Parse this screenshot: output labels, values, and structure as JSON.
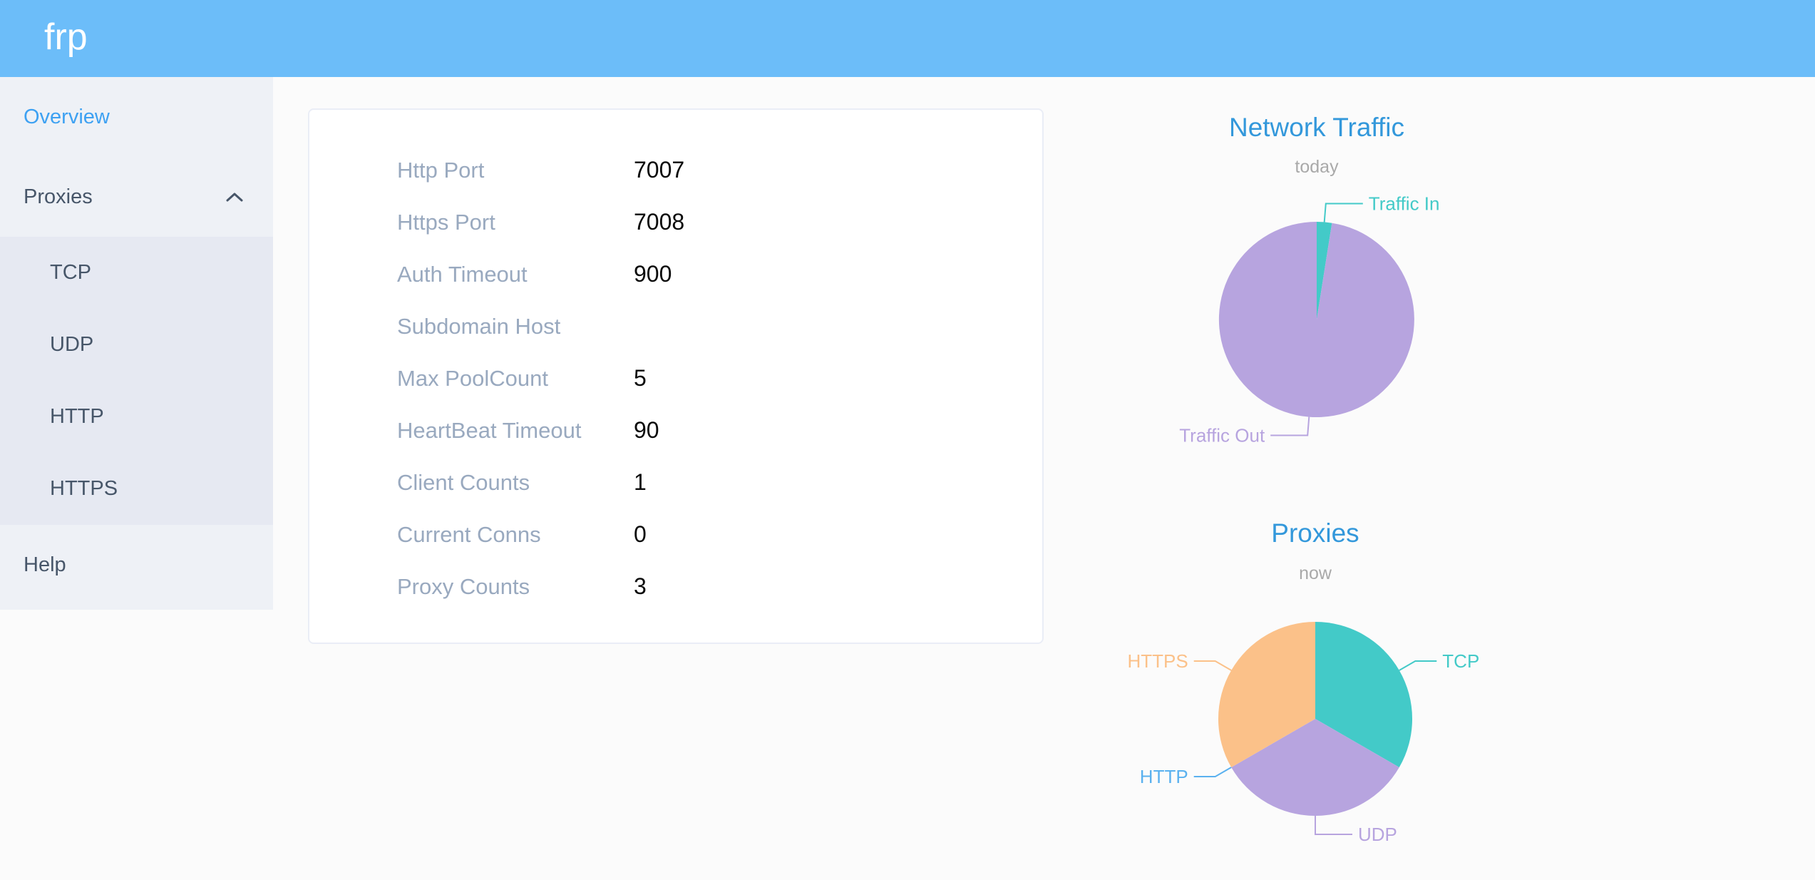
{
  "app": {
    "logo": "frp"
  },
  "sidebar": {
    "items": [
      {
        "label": "Overview",
        "active": true
      },
      {
        "label": "Proxies",
        "expanded": true,
        "icon": "chevron-up-icon",
        "children": [
          "TCP",
          "UDP",
          "HTTP",
          "HTTPS"
        ]
      },
      {
        "label": "Help"
      }
    ]
  },
  "overview": {
    "rows": [
      {
        "label": "Http Port",
        "value": "7007"
      },
      {
        "label": "Https Port",
        "value": "7008"
      },
      {
        "label": "Auth Timeout",
        "value": "900"
      },
      {
        "label": "Subdomain Host",
        "value": ""
      },
      {
        "label": "Max PoolCount",
        "value": "5"
      },
      {
        "label": "HeartBeat Timeout",
        "value": "90"
      },
      {
        "label": "Client Counts",
        "value": "1"
      },
      {
        "label": "Current Conns",
        "value": "0"
      },
      {
        "label": "Proxy Counts",
        "value": "3"
      }
    ]
  },
  "chart_data": [
    {
      "type": "pie",
      "title": "Network Traffic",
      "subtitle": "today",
      "legend_position": "none",
      "label_position": "outside",
      "values_unit": "percent share (estimated from slice angles; absolute byte values not displayed)",
      "slices": [
        {
          "label": "Traffic In",
          "value": 2.5,
          "color": "#43cac8"
        },
        {
          "label": "Traffic Out",
          "value": 97.5,
          "color": "#b7a4df"
        }
      ]
    },
    {
      "type": "pie",
      "title": "Proxies",
      "subtitle": "now",
      "legend_position": "none",
      "label_position": "outside",
      "values_unit": "proxy count",
      "slices": [
        {
          "label": "TCP",
          "value": 1,
          "color": "#43cac8"
        },
        {
          "label": "UDP",
          "value": 1,
          "color": "#b7a4df"
        },
        {
          "label": "HTTP",
          "value": 0,
          "color": "#5ab1ef"
        },
        {
          "label": "HTTPS",
          "value": 1,
          "color": "#fbc189"
        }
      ]
    }
  ],
  "colors": {
    "header_bg": "#6cbdf9",
    "sidebar_bg": "#eef1f6",
    "submenu_bg": "#e6e9f2",
    "active_menu_item": "#3da1f2",
    "menu_text": "#475669",
    "config_label": "#99a9bf",
    "config_value": "#0a0a0a",
    "card_bg": "#ffffff",
    "card_border": "#eaedf6",
    "page_bg": "#fbfbfb",
    "chart_title": "#3398db",
    "chart_subtitle": "#a9a9a9",
    "pie_teal": "#43cac8",
    "pie_purple": "#b7a4df",
    "pie_orange": "#fbc189",
    "pie_blue": "#5ab1ef"
  }
}
